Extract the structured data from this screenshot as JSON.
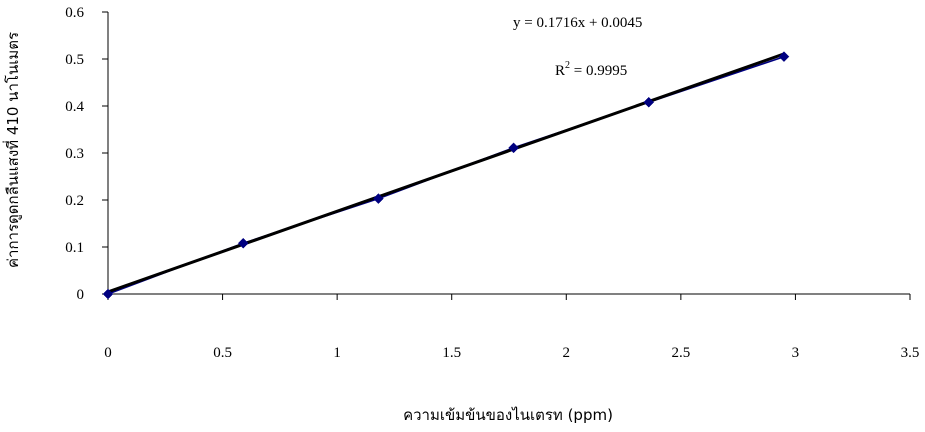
{
  "chart_data": {
    "type": "scatter",
    "xlabel": "ความเข้มข้นของไนเตรท (ppm)",
    "ylabel": "ค่าการดูดกลืนแสงที่ 410 นาโนเมตร",
    "xlim": [
      0,
      3.5
    ],
    "ylim": [
      0,
      0.6
    ],
    "x_ticks": [
      "0",
      "0.5",
      "1",
      "1.5",
      "2",
      "2.5",
      "3",
      "3.5"
    ],
    "y_ticks": [
      "0",
      "0.1",
      "0.2",
      "0.3",
      "0.4",
      "0.5",
      "0.6"
    ],
    "grid": false,
    "legend": "none",
    "series": [
      {
        "x": [
          0,
          0.59,
          1.18,
          1.77,
          2.36,
          2.95
        ],
        "y": [
          0,
          0.108,
          0.203,
          0.311,
          0.408,
          0.505
        ],
        "marker": "diamond",
        "color": "#000080"
      }
    ],
    "trendline": {
      "slope": 0.1716,
      "intercept": 0.0045,
      "color": "#000000",
      "equation_label": "y = 0.1716x + 0.0045",
      "r2_prefix": "R",
      "r2_sup": "2",
      "r2_value": " = 0.9995"
    }
  }
}
